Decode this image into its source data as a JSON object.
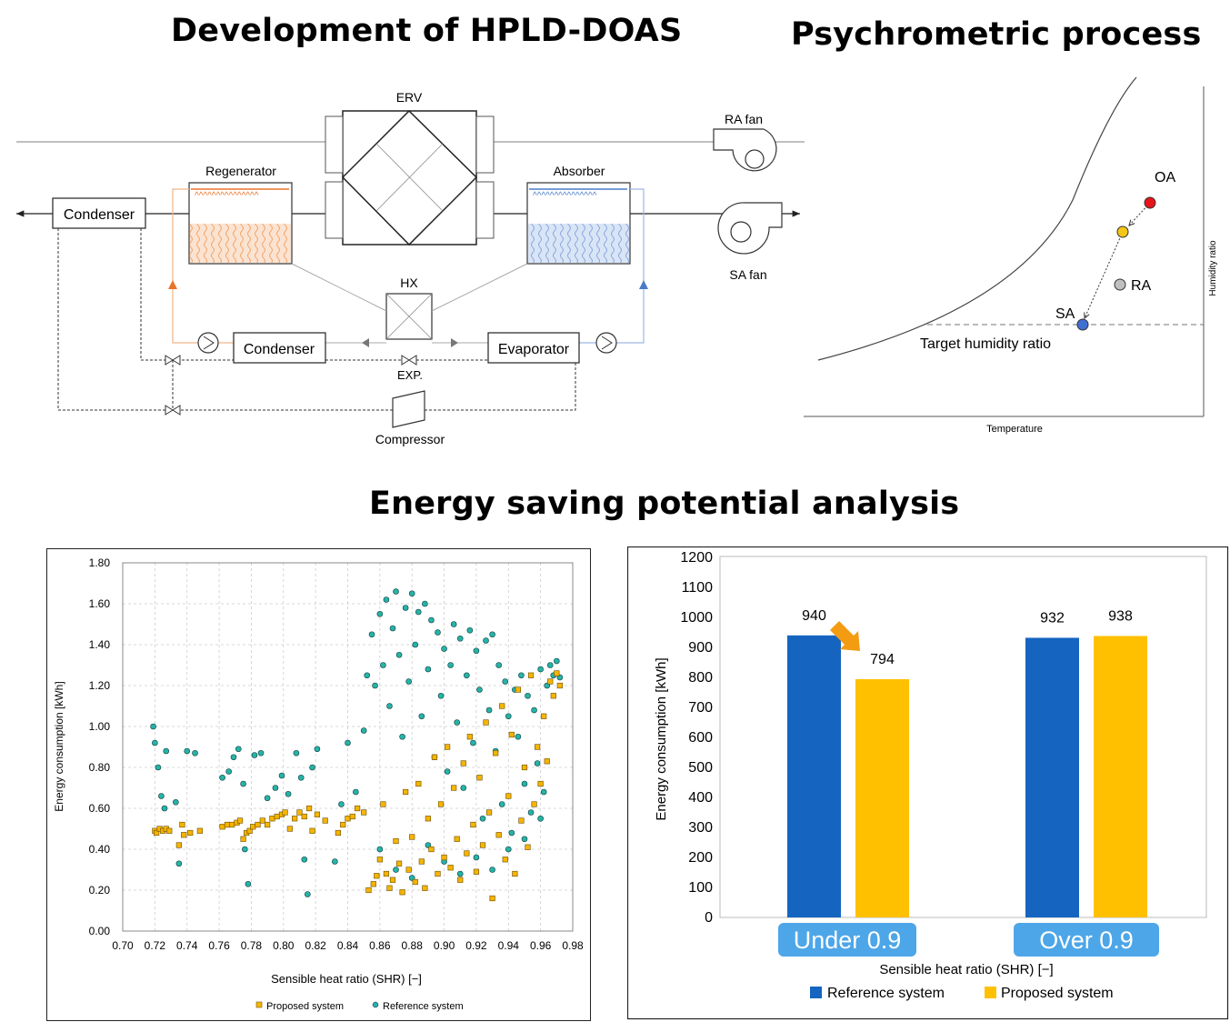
{
  "titles": {
    "hpld_doas": "Development of HPLD-DOAS",
    "psychrometric": "Psychrometric process",
    "energy": "Energy saving potential analysis"
  },
  "schematic": {
    "erv": "ERV",
    "ra_fan": "RA fan",
    "sa_fan": "SA fan",
    "regenerator": "Regenerator",
    "absorber": "Absorber",
    "condenser_left": "Condenser",
    "condenser_mid": "Condenser",
    "evaporator": "Evaporator",
    "hx": "HX",
    "exp": "EXP.",
    "compressor": "Compressor",
    "colors": {
      "regenerator": "#e8732a",
      "absorber": "#4a7cc7"
    }
  },
  "psychro": {
    "points": [
      {
        "label": "OA",
        "color": "#e8141a"
      },
      {
        "label": "",
        "color": "#f5c518"
      },
      {
        "label": "RA",
        "color": "#c0c0c0"
      },
      {
        "label": "SA",
        "color": "#3f6fd0"
      }
    ],
    "target_label": "Target humidity ratio",
    "xlabel": "Temperature",
    "ylabel": "Humidity ratio"
  },
  "chart_data": [
    {
      "type": "scatter",
      "xlabel": "Sensible heat ratio (SHR) [−]",
      "ylabel": "Energy consumption [kWh]",
      "xlim": [
        0.7,
        0.98
      ],
      "ylim": [
        0.0,
        1.8
      ],
      "xticks": [
        "0.70",
        "0.72",
        "0.74",
        "0.76",
        "0.78",
        "0.80",
        "0.82",
        "0.84",
        "0.86",
        "0.88",
        "0.90",
        "0.92",
        "0.94",
        "0.96",
        "0.98"
      ],
      "yticks": [
        "0.00",
        "0.20",
        "0.40",
        "0.60",
        "0.80",
        "1.00",
        "1.20",
        "1.40",
        "1.60",
        "1.80"
      ],
      "grid": "dashed",
      "legend": "bottom",
      "series": [
        {
          "name": "Proposed system",
          "color": "#f5b400",
          "marker": "square",
          "points": [
            [
              0.72,
              0.49
            ],
            [
              0.721,
              0.48
            ],
            [
              0.723,
              0.5
            ],
            [
              0.725,
              0.49
            ],
            [
              0.727,
              0.5
            ],
            [
              0.729,
              0.49
            ],
            [
              0.735,
              0.42
            ],
            [
              0.737,
              0.52
            ],
            [
              0.738,
              0.47
            ],
            [
              0.742,
              0.48
            ],
            [
              0.748,
              0.49
            ],
            [
              0.762,
              0.51
            ],
            [
              0.765,
              0.52
            ],
            [
              0.768,
              0.52
            ],
            [
              0.771,
              0.53
            ],
            [
              0.773,
              0.54
            ],
            [
              0.775,
              0.45
            ],
            [
              0.777,
              0.48
            ],
            [
              0.779,
              0.49
            ],
            [
              0.781,
              0.51
            ],
            [
              0.784,
              0.52
            ],
            [
              0.787,
              0.54
            ],
            [
              0.79,
              0.52
            ],
            [
              0.793,
              0.55
            ],
            [
              0.796,
              0.56
            ],
            [
              0.799,
              0.57
            ],
            [
              0.801,
              0.58
            ],
            [
              0.804,
              0.5
            ],
            [
              0.807,
              0.55
            ],
            [
              0.81,
              0.58
            ],
            [
              0.813,
              0.56
            ],
            [
              0.816,
              0.6
            ],
            [
              0.818,
              0.49
            ],
            [
              0.821,
              0.57
            ],
            [
              0.826,
              0.54
            ],
            [
              0.834,
              0.48
            ],
            [
              0.837,
              0.52
            ],
            [
              0.84,
              0.55
            ],
            [
              0.843,
              0.56
            ],
            [
              0.846,
              0.6
            ],
            [
              0.85,
              0.58
            ],
            [
              0.853,
              0.2
            ],
            [
              0.856,
              0.23
            ],
            [
              0.858,
              0.27
            ],
            [
              0.86,
              0.35
            ],
            [
              0.862,
              0.62
            ],
            [
              0.864,
              0.28
            ],
            [
              0.866,
              0.21
            ],
            [
              0.868,
              0.25
            ],
            [
              0.87,
              0.44
            ],
            [
              0.872,
              0.33
            ],
            [
              0.874,
              0.19
            ],
            [
              0.876,
              0.68
            ],
            [
              0.878,
              0.3
            ],
            [
              0.88,
              0.46
            ],
            [
              0.882,
              0.24
            ],
            [
              0.884,
              0.72
            ],
            [
              0.886,
              0.34
            ],
            [
              0.888,
              0.21
            ],
            [
              0.89,
              0.55
            ],
            [
              0.892,
              0.4
            ],
            [
              0.894,
              0.85
            ],
            [
              0.896,
              0.28
            ],
            [
              0.898,
              0.62
            ],
            [
              0.9,
              0.36
            ],
            [
              0.902,
              0.9
            ],
            [
              0.904,
              0.31
            ],
            [
              0.906,
              0.7
            ],
            [
              0.908,
              0.45
            ],
            [
              0.91,
              0.25
            ],
            [
              0.912,
              0.82
            ],
            [
              0.914,
              0.38
            ],
            [
              0.916,
              0.95
            ],
            [
              0.918,
              0.52
            ],
            [
              0.92,
              0.29
            ],
            [
              0.922,
              0.75
            ],
            [
              0.924,
              0.42
            ],
            [
              0.926,
              1.02
            ],
            [
              0.928,
              0.58
            ],
            [
              0.93,
              0.16
            ],
            [
              0.932,
              0.87
            ],
            [
              0.934,
              0.47
            ],
            [
              0.936,
              1.1
            ],
            [
              0.938,
              0.35
            ],
            [
              0.94,
              0.66
            ],
            [
              0.942,
              0.96
            ],
            [
              0.944,
              0.28
            ],
            [
              0.946,
              1.18
            ],
            [
              0.948,
              0.54
            ],
            [
              0.95,
              0.8
            ],
            [
              0.952,
              0.41
            ],
            [
              0.954,
              1.25
            ],
            [
              0.956,
              0.62
            ],
            [
              0.958,
              0.9
            ],
            [
              0.96,
              0.72
            ],
            [
              0.962,
              1.05
            ],
            [
              0.964,
              0.83
            ],
            [
              0.966,
              1.22
            ],
            [
              0.968,
              1.15
            ],
            [
              0.97,
              1.26
            ],
            [
              0.972,
              1.2
            ]
          ]
        },
        {
          "name": "Reference system",
          "color": "#26b3a8",
          "marker": "circle",
          "points": [
            [
              0.719,
              1.0
            ],
            [
              0.72,
              0.92
            ],
            [
              0.722,
              0.8
            ],
            [
              0.724,
              0.66
            ],
            [
              0.726,
              0.6
            ],
            [
              0.727,
              0.88
            ],
            [
              0.733,
              0.63
            ],
            [
              0.735,
              0.33
            ],
            [
              0.74,
              0.88
            ],
            [
              0.745,
              0.87
            ],
            [
              0.762,
              0.75
            ],
            [
              0.766,
              0.78
            ],
            [
              0.769,
              0.85
            ],
            [
              0.772,
              0.89
            ],
            [
              0.775,
              0.72
            ],
            [
              0.776,
              0.4
            ],
            [
              0.778,
              0.23
            ],
            [
              0.782,
              0.86
            ],
            [
              0.786,
              0.87
            ],
            [
              0.79,
              0.65
            ],
            [
              0.795,
              0.7
            ],
            [
              0.799,
              0.76
            ],
            [
              0.803,
              0.67
            ],
            [
              0.808,
              0.87
            ],
            [
              0.811,
              0.75
            ],
            [
              0.813,
              0.35
            ],
            [
              0.815,
              0.18
            ],
            [
              0.818,
              0.8
            ],
            [
              0.821,
              0.89
            ],
            [
              0.832,
              0.34
            ],
            [
              0.836,
              0.62
            ],
            [
              0.84,
              0.92
            ],
            [
              0.845,
              0.68
            ],
            [
              0.85,
              0.98
            ],
            [
              0.852,
              1.25
            ],
            [
              0.855,
              1.45
            ],
            [
              0.857,
              1.2
            ],
            [
              0.86,
              1.55
            ],
            [
              0.862,
              1.3
            ],
            [
              0.864,
              1.62
            ],
            [
              0.866,
              1.1
            ],
            [
              0.868,
              1.48
            ],
            [
              0.87,
              1.66
            ],
            [
              0.872,
              1.35
            ],
            [
              0.874,
              0.95
            ],
            [
              0.876,
              1.58
            ],
            [
              0.878,
              1.22
            ],
            [
              0.88,
              1.65
            ],
            [
              0.882,
              1.4
            ],
            [
              0.884,
              1.56
            ],
            [
              0.886,
              1.05
            ],
            [
              0.888,
              1.6
            ],
            [
              0.89,
              1.28
            ],
            [
              0.892,
              1.52
            ],
            [
              0.894,
              0.85
            ],
            [
              0.896,
              1.46
            ],
            [
              0.898,
              1.15
            ],
            [
              0.9,
              1.38
            ],
            [
              0.902,
              0.78
            ],
            [
              0.904,
              1.3
            ],
            [
              0.906,
              1.5
            ],
            [
              0.908,
              1.02
            ],
            [
              0.91,
              1.43
            ],
            [
              0.912,
              0.7
            ],
            [
              0.914,
              1.25
            ],
            [
              0.916,
              1.47
            ],
            [
              0.918,
              0.92
            ],
            [
              0.92,
              1.37
            ],
            [
              0.922,
              1.18
            ],
            [
              0.924,
              0.55
            ],
            [
              0.926,
              1.42
            ],
            [
              0.928,
              1.08
            ],
            [
              0.93,
              1.45
            ],
            [
              0.932,
              0.88
            ],
            [
              0.934,
              1.3
            ],
            [
              0.936,
              0.62
            ],
            [
              0.938,
              1.22
            ],
            [
              0.94,
              1.05
            ],
            [
              0.942,
              0.48
            ],
            [
              0.944,
              1.18
            ],
            [
              0.946,
              0.95
            ],
            [
              0.948,
              1.25
            ],
            [
              0.95,
              0.72
            ],
            [
              0.952,
              1.15
            ],
            [
              0.954,
              0.58
            ],
            [
              0.956,
              1.08
            ],
            [
              0.958,
              0.82
            ],
            [
              0.96,
              1.28
            ],
            [
              0.962,
              0.68
            ],
            [
              0.964,
              1.2
            ],
            [
              0.966,
              1.3
            ],
            [
              0.968,
              1.25
            ],
            [
              0.97,
              1.32
            ],
            [
              0.972,
              1.24
            ],
            [
              0.86,
              0.4
            ],
            [
              0.87,
              0.3
            ],
            [
              0.88,
              0.26
            ],
            [
              0.89,
              0.42
            ],
            [
              0.9,
              0.34
            ],
            [
              0.91,
              0.28
            ],
            [
              0.92,
              0.36
            ],
            [
              0.93,
              0.3
            ],
            [
              0.94,
              0.4
            ],
            [
              0.95,
              0.45
            ],
            [
              0.96,
              0.55
            ]
          ]
        }
      ]
    },
    {
      "type": "bar",
      "categories": [
        "Under 0.9",
        "Over 0.9"
      ],
      "xlabel": "Sensible heat ratio (SHR) [−]",
      "ylabel": "Energy consumption [kWh]",
      "ylim": [
        0,
        1200
      ],
      "yticks": [
        "0",
        "100",
        "200",
        "300",
        "400",
        "500",
        "600",
        "700",
        "800",
        "900",
        "1000",
        "1100",
        "1200"
      ],
      "legend": "bottom",
      "series": [
        {
          "name": "Reference system",
          "color": "#1565c0",
          "values": [
            940,
            932
          ],
          "labels": [
            "940",
            "932"
          ]
        },
        {
          "name": "Proposed system",
          "color": "#ffc000",
          "values": [
            794,
            938
          ],
          "labels": [
            "794",
            "938"
          ]
        }
      ],
      "category_badge_color": "#4da6e8",
      "arrow_color": "#f39c12"
    }
  ]
}
